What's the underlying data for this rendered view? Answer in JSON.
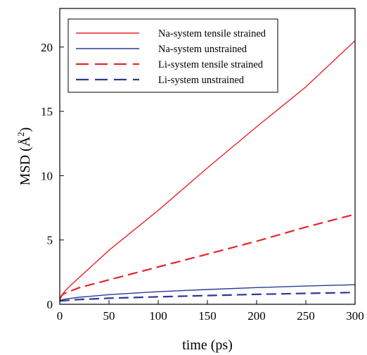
{
  "chart_data": {
    "type": "line",
    "title": "",
    "xlabel": "time (ps)",
    "ylabel_prefix": "MSD (Å",
    "ylabel_exponent": "2",
    "ylabel_suffix": ")",
    "xlim": [
      0,
      300
    ],
    "ylim": [
      0,
      23
    ],
    "xticks": [
      0,
      50,
      100,
      150,
      200,
      250,
      300
    ],
    "yticks": [
      0,
      5,
      10,
      15,
      20
    ],
    "grid": false,
    "legend_position": "top-left",
    "series": [
      {
        "name": "Na-system tensile strained",
        "color": "#e8242c",
        "dash": "solid",
        "x": [
          0,
          2,
          5,
          10,
          20,
          50,
          100,
          150,
          200,
          250,
          300
        ],
        "y": [
          0.3,
          0.7,
          1.0,
          1.4,
          2.1,
          4.2,
          7.3,
          10.6,
          13.8,
          16.9,
          20.5
        ]
      },
      {
        "name": "Na-system unstrained",
        "color": "#2b3a97",
        "dash": "solid",
        "x": [
          0,
          5,
          10,
          20,
          50,
          100,
          150,
          200,
          250,
          300
        ],
        "y": [
          0.3,
          0.4,
          0.45,
          0.55,
          0.75,
          0.98,
          1.15,
          1.3,
          1.42,
          1.52
        ]
      },
      {
        "name": "Li-system tensile strained",
        "color": "#e8242c",
        "dash": "dashed",
        "x": [
          0,
          2,
          5,
          10,
          20,
          50,
          100,
          150,
          200,
          250,
          300
        ],
        "y": [
          0.4,
          0.7,
          0.85,
          1.0,
          1.3,
          1.9,
          2.9,
          3.9,
          4.9,
          6.0,
          7.0
        ]
      },
      {
        "name": "Li-system unstrained",
        "color": "#2b3a97",
        "dash": "dashed",
        "x": [
          0,
          10,
          20,
          50,
          100,
          150,
          200,
          250,
          300
        ],
        "y": [
          0.25,
          0.32,
          0.37,
          0.47,
          0.58,
          0.68,
          0.77,
          0.85,
          0.92
        ]
      }
    ]
  }
}
